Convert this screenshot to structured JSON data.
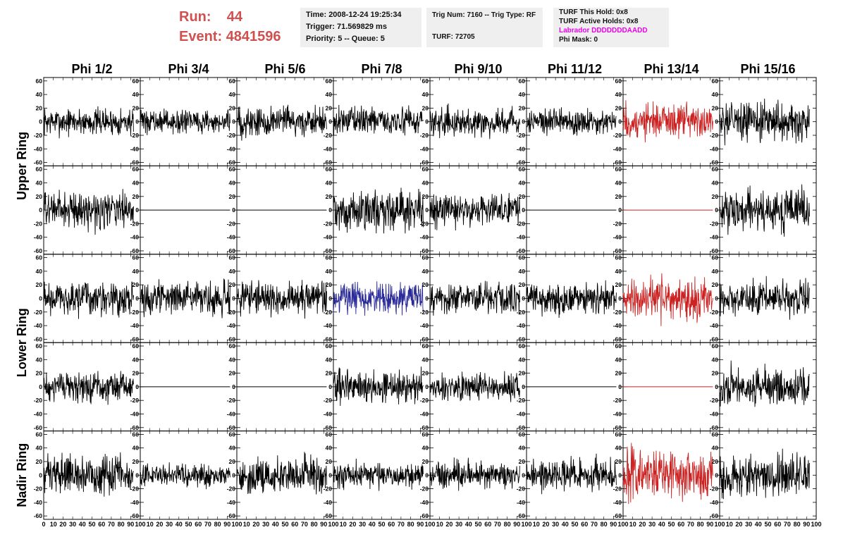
{
  "header": {
    "run_label": "Run:",
    "run_value": "44",
    "event_label": "Event:",
    "event_value": "4841596",
    "time": "Time: 2008-12-24 19:25:34",
    "trigger": "Trigger: 71.569829 ms",
    "priority": "Priority: 5 -- Queue: 5",
    "trig_num": "Trig Num: 7160 -- Trig Type: RF",
    "turf": "TURF: 72705",
    "turf_this_hold": "TURF This Hold: 0x8",
    "turf_active_holds": "TURF Active Holds: 0x8",
    "labrador": "Labrador DDDDDDDAADD",
    "phi_mask": "Phi Mask: 0"
  },
  "colors": {
    "run": "#d05050",
    "labrador": "#ee00ee",
    "trace_black": "#000000",
    "trace_red": "#cc2222",
    "trace_blue": "#2a2a99"
  },
  "chart_data": {
    "type": "line",
    "title": "",
    "columns": [
      "Phi 1/2",
      "Phi 3/4",
      "Phi 5/6",
      "Phi 7/8",
      "Phi 9/10",
      "Phi 11/12",
      "Phi 13/14",
      "Phi 15/16"
    ],
    "rows": [
      "Upper Ring",
      "Upper Ring",
      "Lower Ring",
      "Lower Ring",
      "Nadir Ring"
    ],
    "row_labels": [
      {
        "text": "Upper Ring",
        "rows": [
          0,
          1
        ]
      },
      {
        "text": "Lower Ring",
        "rows": [
          2,
          3
        ]
      },
      {
        "text": "Nadir Ring",
        "rows": [
          4
        ]
      }
    ],
    "ylim": [
      -65,
      65
    ],
    "yticks": [
      "60",
      "40",
      "20",
      "0",
      "-20",
      "-40",
      "-60"
    ],
    "yticks_values": [
      60,
      40,
      20,
      0,
      -20,
      -40,
      -60
    ],
    "xlim": [
      0,
      100
    ],
    "xticks": [
      "0",
      "10",
      "20",
      "30",
      "40",
      "50",
      "60",
      "70",
      "80",
      "90",
      "100"
    ],
    "xticks_values": [
      0,
      10,
      20,
      30,
      40,
      50,
      60,
      70,
      80,
      90,
      100
    ],
    "trace_x_range": [
      0,
      93
    ],
    "panels": [
      {
        "row": 0,
        "col": 0,
        "amp": 12,
        "flat": false,
        "color": "black"
      },
      {
        "row": 0,
        "col": 1,
        "amp": 10,
        "flat": false,
        "color": "black"
      },
      {
        "row": 0,
        "col": 2,
        "amp": 14,
        "flat": false,
        "color": "black"
      },
      {
        "row": 0,
        "col": 3,
        "amp": 12,
        "flat": false,
        "color": "black"
      },
      {
        "row": 0,
        "col": 4,
        "amp": 12,
        "flat": false,
        "color": "black"
      },
      {
        "row": 0,
        "col": 5,
        "amp": 12,
        "flat": false,
        "color": "black"
      },
      {
        "row": 0,
        "col": 6,
        "amp": 16,
        "flat": false,
        "color": "red"
      },
      {
        "row": 0,
        "col": 7,
        "amp": 17,
        "flat": false,
        "color": "black"
      },
      {
        "row": 1,
        "col": 0,
        "amp": 16,
        "flat": false,
        "color": "black"
      },
      {
        "row": 1,
        "col": 1,
        "amp": 0,
        "flat": true,
        "color": "black"
      },
      {
        "row": 1,
        "col": 2,
        "amp": 0,
        "flat": true,
        "color": "black"
      },
      {
        "row": 1,
        "col": 3,
        "amp": 18,
        "flat": false,
        "color": "black"
      },
      {
        "row": 1,
        "col": 4,
        "amp": 14,
        "flat": false,
        "color": "black"
      },
      {
        "row": 1,
        "col": 5,
        "amp": 0,
        "flat": true,
        "color": "black"
      },
      {
        "row": 1,
        "col": 6,
        "amp": 0,
        "flat": true,
        "color": "red"
      },
      {
        "row": 1,
        "col": 7,
        "amp": 18,
        "flat": false,
        "color": "black"
      },
      {
        "row": 2,
        "col": 0,
        "amp": 15,
        "flat": false,
        "color": "black"
      },
      {
        "row": 2,
        "col": 1,
        "amp": 14,
        "flat": false,
        "color": "black"
      },
      {
        "row": 2,
        "col": 2,
        "amp": 14,
        "flat": false,
        "color": "black"
      },
      {
        "row": 2,
        "col": 3,
        "amp": 14,
        "flat": false,
        "color": "blue"
      },
      {
        "row": 2,
        "col": 4,
        "amp": 14,
        "flat": false,
        "color": "black"
      },
      {
        "row": 2,
        "col": 5,
        "amp": 14,
        "flat": false,
        "color": "black"
      },
      {
        "row": 2,
        "col": 6,
        "amp": 18,
        "flat": false,
        "color": "red"
      },
      {
        "row": 2,
        "col": 7,
        "amp": 15,
        "flat": false,
        "color": "black"
      },
      {
        "row": 3,
        "col": 0,
        "amp": 13,
        "flat": false,
        "color": "black"
      },
      {
        "row": 3,
        "col": 1,
        "amp": 0,
        "flat": true,
        "color": "black"
      },
      {
        "row": 3,
        "col": 2,
        "amp": 0,
        "flat": true,
        "color": "black"
      },
      {
        "row": 3,
        "col": 3,
        "amp": 15,
        "flat": false,
        "color": "black"
      },
      {
        "row": 3,
        "col": 4,
        "amp": 12,
        "flat": false,
        "color": "black"
      },
      {
        "row": 3,
        "col": 5,
        "amp": 0,
        "flat": true,
        "color": "black"
      },
      {
        "row": 3,
        "col": 6,
        "amp": 0,
        "flat": true,
        "color": "red"
      },
      {
        "row": 3,
        "col": 7,
        "amp": 17,
        "flat": false,
        "color": "black"
      },
      {
        "row": 4,
        "col": 0,
        "amp": 17,
        "flat": false,
        "color": "black"
      },
      {
        "row": 4,
        "col": 1,
        "amp": 10,
        "flat": false,
        "color": "black"
      },
      {
        "row": 4,
        "col": 2,
        "amp": 16,
        "flat": false,
        "color": "black"
      },
      {
        "row": 4,
        "col": 3,
        "amp": 12,
        "flat": false,
        "color": "black"
      },
      {
        "row": 4,
        "col": 4,
        "amp": 12,
        "flat": false,
        "color": "black"
      },
      {
        "row": 4,
        "col": 5,
        "amp": 14,
        "flat": false,
        "color": "black"
      },
      {
        "row": 4,
        "col": 6,
        "amp": 22,
        "flat": false,
        "color": "red"
      },
      {
        "row": 4,
        "col": 7,
        "amp": 18,
        "flat": false,
        "color": "black"
      }
    ]
  }
}
